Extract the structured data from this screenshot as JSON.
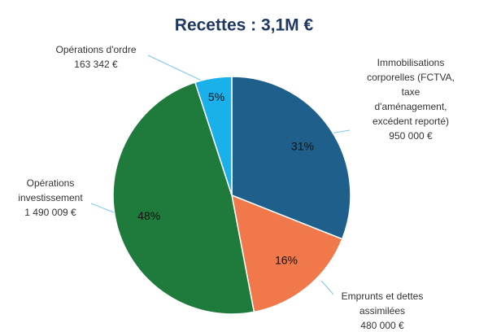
{
  "chart_data": {
    "type": "pie",
    "title": "Recettes : 3,1M €",
    "categories": [
      [
        "Immobilisations",
        "corporelles (FCTVA,",
        "taxe",
        "d'aménagement,",
        "excédent reporté)"
      ],
      [
        "Emprunts et dettes",
        "assimilées"
      ],
      [
        "Opérations",
        "investissement"
      ],
      [
        "Opérations d'ordre"
      ]
    ],
    "amounts": [
      "950 000 €",
      "480 000 €",
      "1 490 009 €",
      "163 342 €"
    ],
    "values": [
      31,
      16,
      48,
      5
    ],
    "value_labels": [
      "31%",
      "16%",
      "48%",
      "5%"
    ],
    "colors": [
      "#1f5f8b",
      "#f0784a",
      "#1e7b3c",
      "#1ab0ea"
    ]
  }
}
